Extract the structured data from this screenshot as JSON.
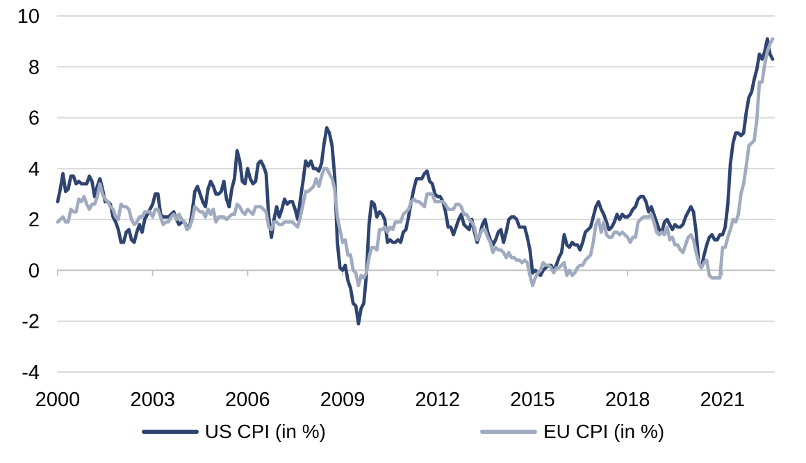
{
  "chart_data": {
    "type": "line",
    "title": "",
    "xlabel": "",
    "ylabel": "",
    "x_unit": "monthly",
    "x_start_year": 2000,
    "x_end_label": "2022-08",
    "ylim": [
      -4,
      10
    ],
    "grid": true,
    "legend_position": "bottom",
    "y_ticks": [
      10,
      8,
      6,
      4,
      2,
      0,
      -2,
      -4
    ],
    "x_ticks": [
      2000,
      2003,
      2006,
      2009,
      2012,
      2015,
      2018,
      2021
    ],
    "colors": {
      "gridline": "#D9D9D9",
      "axis_line": "#C2C2C2",
      "tick_label": "#000000"
    },
    "series": [
      {
        "name": "US CPI (in %)",
        "color": "#2F4470",
        "values": [
          2.7,
          3.2,
          3.8,
          3.1,
          3.2,
          3.7,
          3.7,
          3.4,
          3.5,
          3.4,
          3.4,
          3.4,
          3.7,
          3.5,
          2.9,
          3.3,
          3.6,
          3.2,
          2.7,
          2.7,
          2.6,
          2.1,
          1.9,
          1.6,
          1.1,
          1.1,
          1.5,
          1.6,
          1.2,
          1.1,
          1.5,
          1.8,
          1.5,
          2.0,
          2.2,
          2.4,
          2.6,
          3.0,
          3.0,
          2.2,
          2.1,
          2.1,
          2.1,
          2.2,
          2.3,
          2.0,
          1.8,
          1.9,
          1.9,
          1.7,
          1.7,
          2.3,
          3.1,
          3.3,
          3.0,
          2.7,
          2.5,
          3.2,
          3.5,
          3.3,
          3.0,
          3.0,
          3.1,
          3.5,
          2.8,
          2.5,
          3.2,
          3.6,
          4.7,
          4.3,
          3.5,
          3.4,
          4.0,
          3.6,
          3.4,
          3.5,
          4.2,
          4.3,
          4.1,
          3.8,
          2.1,
          1.3,
          2.0,
          2.5,
          2.1,
          2.4,
          2.8,
          2.6,
          2.7,
          2.7,
          2.4,
          2.0,
          2.8,
          3.5,
          4.3,
          4.1,
          4.3,
          4.0,
          4.0,
          3.9,
          4.2,
          5.0,
          5.6,
          5.4,
          4.9,
          3.7,
          1.1,
          0.1,
          0.0,
          0.2,
          -0.4,
          -0.7,
          -1.3,
          -1.4,
          -2.1,
          -1.5,
          -1.3,
          -0.2,
          1.8,
          2.7,
          2.6,
          2.1,
          2.3,
          2.2,
          2.0,
          1.1,
          1.2,
          1.1,
          1.1,
          1.2,
          1.1,
          1.5,
          1.6,
          2.1,
          2.7,
          3.2,
          3.6,
          3.6,
          3.6,
          3.8,
          3.9,
          3.5,
          3.4,
          3.0,
          2.9,
          2.9,
          2.7,
          2.3,
          1.7,
          1.7,
          1.4,
          1.7,
          2.0,
          2.2,
          1.8,
          1.7,
          1.6,
          2.0,
          1.5,
          1.1,
          1.4,
          1.8,
          2.0,
          1.5,
          1.2,
          1.0,
          1.2,
          1.5,
          1.6,
          1.1,
          1.5,
          2.0,
          2.1,
          2.1,
          2.0,
          1.7,
          1.7,
          1.7,
          1.3,
          0.8,
          -0.1,
          0.0,
          -0.1,
          -0.2,
          0.0,
          0.1,
          0.2,
          0.2,
          0.0,
          0.2,
          0.5,
          0.7,
          1.4,
          1.0,
          0.9,
          1.1,
          1.0,
          1.0,
          0.8,
          1.1,
          1.5,
          1.6,
          1.7,
          2.1,
          2.5,
          2.7,
          2.4,
          2.2,
          1.9,
          1.6,
          1.7,
          1.9,
          2.2,
          2.0,
          2.2,
          2.1,
          2.1,
          2.2,
          2.4,
          2.5,
          2.8,
          2.9,
          2.9,
          2.7,
          2.3,
          2.5,
          2.2,
          1.9,
          1.6,
          1.5,
          1.9,
          2.0,
          1.8,
          1.6,
          1.8,
          1.7,
          1.7,
          1.8,
          2.1,
          2.3,
          2.5,
          2.3,
          1.5,
          0.3,
          0.1,
          0.6,
          1.0,
          1.3,
          1.4,
          1.2,
          1.2,
          1.4,
          1.4,
          1.7,
          2.6,
          4.2,
          5.0,
          5.4,
          5.4,
          5.3,
          5.4,
          6.2,
          6.8,
          7.0,
          7.5,
          7.9,
          8.5,
          8.3,
          8.6,
          9.1,
          8.5,
          8.3
        ]
      },
      {
        "name": "EU CPI (in %)",
        "color": "#A1ABC0",
        "values": [
          1.9,
          2.0,
          2.1,
          1.9,
          1.9,
          2.4,
          2.3,
          2.3,
          2.8,
          2.7,
          2.9,
          2.6,
          2.4,
          2.6,
          2.6,
          2.9,
          3.4,
          3.0,
          2.8,
          2.7,
          2.5,
          2.4,
          2.1,
          2.0,
          2.6,
          2.5,
          2.5,
          2.4,
          2.0,
          1.8,
          1.9,
          2.1,
          2.1,
          2.3,
          2.3,
          2.3,
          2.1,
          2.4,
          2.4,
          2.1,
          1.8,
          1.9,
          1.9,
          2.1,
          2.2,
          2.0,
          2.2,
          2.0,
          1.9,
          1.6,
          1.7,
          2.0,
          2.5,
          2.4,
          2.3,
          2.3,
          2.1,
          2.4,
          2.2,
          2.4,
          1.9,
          2.1,
          2.1,
          2.1,
          2.0,
          2.1,
          2.2,
          2.2,
          2.6,
          2.5,
          2.3,
          2.2,
          2.4,
          2.3,
          2.2,
          2.5,
          2.5,
          2.5,
          2.4,
          2.3,
          1.7,
          1.6,
          1.9,
          1.9,
          1.8,
          1.8,
          1.9,
          1.9,
          1.9,
          1.9,
          1.8,
          1.7,
          2.1,
          2.6,
          3.1,
          3.1,
          3.2,
          3.3,
          3.6,
          3.3,
          3.7,
          4.0,
          4.0,
          3.8,
          3.6,
          3.2,
          2.1,
          1.6,
          1.1,
          1.2,
          0.6,
          0.6,
          0.0,
          -0.1,
          -0.6,
          -0.2,
          -0.3,
          -0.1,
          0.5,
          0.9,
          0.9,
          0.8,
          1.6,
          1.6,
          1.7,
          1.5,
          1.7,
          1.6,
          1.9,
          1.9,
          1.9,
          2.2,
          2.3,
          2.4,
          2.7,
          2.8,
          2.7,
          2.7,
          2.6,
          2.5,
          3.0,
          3.0,
          3.0,
          2.7,
          2.7,
          2.7,
          2.7,
          2.6,
          2.4,
          2.4,
          2.4,
          2.6,
          2.6,
          2.5,
          2.2,
          2.2,
          2.0,
          1.9,
          1.7,
          1.2,
          1.4,
          1.6,
          1.6,
          1.3,
          1.1,
          0.7,
          0.9,
          0.8,
          0.8,
          0.7,
          0.5,
          0.7,
          0.5,
          0.5,
          0.4,
          0.4,
          0.3,
          0.4,
          0.3,
          -0.2,
          -0.6,
          -0.3,
          -0.1,
          0.0,
          0.3,
          0.2,
          0.2,
          0.1,
          -0.1,
          0.1,
          0.1,
          0.2,
          0.3,
          -0.2,
          0.0,
          -0.2,
          -0.1,
          0.1,
          0.2,
          0.2,
          0.4,
          0.5,
          0.6,
          1.1,
          1.8,
          2.0,
          1.5,
          1.9,
          1.4,
          1.3,
          1.3,
          1.5,
          1.5,
          1.4,
          1.5,
          1.4,
          1.3,
          1.1,
          1.3,
          1.3,
          1.9,
          2.0,
          2.1,
          2.1,
          2.1,
          2.2,
          1.9,
          1.5,
          1.4,
          1.5,
          1.4,
          1.7,
          1.2,
          1.3,
          1.0,
          1.0,
          0.8,
          0.7,
          1.0,
          1.3,
          1.4,
          1.2,
          0.7,
          0.3,
          0.1,
          0.3,
          0.4,
          -0.2,
          -0.3,
          -0.3,
          -0.3,
          -0.3,
          0.9,
          0.9,
          1.3,
          1.6,
          2.0,
          1.9,
          2.2,
          3.0,
          3.4,
          4.1,
          4.9,
          5.0,
          5.1,
          5.9,
          7.4,
          7.4,
          8.1,
          8.6,
          8.9,
          9.1
        ]
      }
    ]
  }
}
